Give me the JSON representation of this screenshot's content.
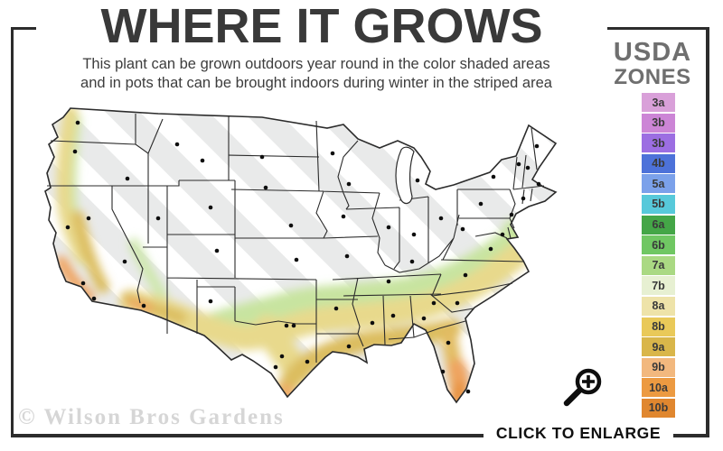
{
  "title": "WHERE IT GROWS",
  "subtitle_line1": "This plant can be grown outdoors year round in the color shaded areas",
  "subtitle_line2": "and in pots that can be brought indoors during winter in the striped area",
  "legend": {
    "title_line1": "USDA",
    "title_line2": "ZONES",
    "zones": [
      {
        "label": "3a",
        "color": "#d9a0d9"
      },
      {
        "label": "3b",
        "color": "#cc85d6"
      },
      {
        "label": "3b",
        "color": "#9c6ee2"
      },
      {
        "label": "4b",
        "color": "#4d72d9"
      },
      {
        "label": "5a",
        "color": "#7ba1ea"
      },
      {
        "label": "5b",
        "color": "#57c9da"
      },
      {
        "label": "6a",
        "color": "#44a647"
      },
      {
        "label": "6b",
        "color": "#70c763"
      },
      {
        "label": "7a",
        "color": "#aad983"
      },
      {
        "label": "7b",
        "color": "#e7f0d2"
      },
      {
        "label": "8a",
        "color": "#eee3a9"
      },
      {
        "label": "8b",
        "color": "#e9c959"
      },
      {
        "label": "9a",
        "color": "#d9b64a"
      },
      {
        "label": "9b",
        "color": "#f2b87e"
      },
      {
        "label": "10a",
        "color": "#ec9a41"
      },
      {
        "label": "10b",
        "color": "#e0872f"
      }
    ]
  },
  "map": {
    "description": "Contiguous United States hardiness map: northern states striped (grow in pots), southern band color-shaded (grows outdoors year round)",
    "striped_area_color": "#e9eaea",
    "outline_color": "#2b2b2b"
  },
  "watermark": "© Wilson Bros Gardens",
  "enlarge_label": "CLICK TO ENLARGE"
}
